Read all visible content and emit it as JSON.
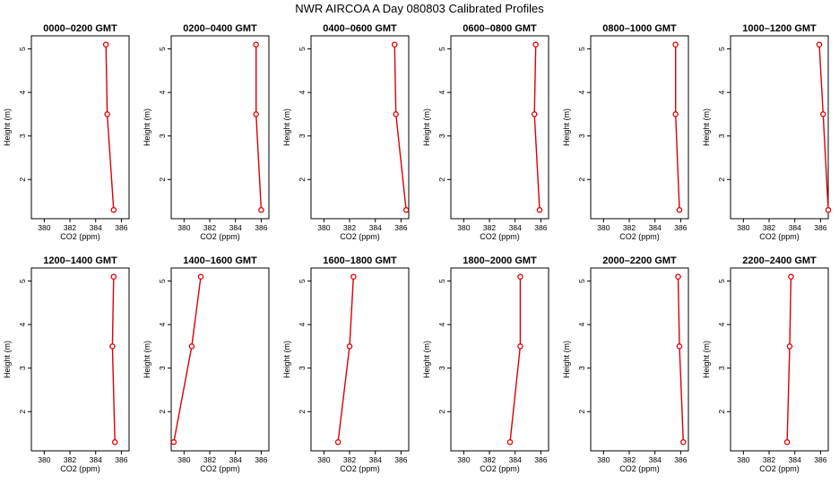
{
  "figure": {
    "title": "NWR AIRCOA A  Day 080803  Calibrated Profiles",
    "line_color": "#dd0000",
    "point_color": "#dd0000"
  },
  "chart_data": [
    {
      "type": "line",
      "title": "0000–0200 GMT",
      "xlabel": "CO2 (ppm)",
      "ylabel": "Height (m)",
      "xlim": [
        379,
        386.6
      ],
      "ylim": [
        1.1,
        5.3
      ],
      "xticks": [
        380,
        382,
        384,
        386
      ],
      "yticks": [
        2,
        3,
        4,
        5
      ],
      "series": [
        {
          "x": [
            385.4,
            384.9,
            384.8
          ],
          "y": [
            1.3,
            3.5,
            5.1
          ]
        }
      ]
    },
    {
      "type": "line",
      "title": "0200–0400 GMT",
      "xlabel": "CO2 (ppm)",
      "ylabel": "Height (m)",
      "xlim": [
        379,
        386.6
      ],
      "ylim": [
        1.1,
        5.3
      ],
      "xticks": [
        380,
        382,
        384,
        386
      ],
      "yticks": [
        2,
        3,
        4,
        5
      ],
      "series": [
        {
          "x": [
            386.0,
            385.6,
            385.6
          ],
          "y": [
            1.3,
            3.5,
            5.1
          ]
        }
      ]
    },
    {
      "type": "line",
      "title": "0400–0600 GMT",
      "xlabel": "CO2 (ppm)",
      "ylabel": "Height (m)",
      "xlim": [
        379,
        386.6
      ],
      "ylim": [
        1.1,
        5.3
      ],
      "xticks": [
        380,
        382,
        384,
        386
      ],
      "yticks": [
        2,
        3,
        4,
        5
      ],
      "series": [
        {
          "x": [
            386.4,
            385.6,
            385.5
          ],
          "y": [
            1.3,
            3.5,
            5.1
          ]
        }
      ]
    },
    {
      "type": "line",
      "title": "0600–0800 GMT",
      "xlabel": "CO2 (ppm)",
      "ylabel": "Height (m)",
      "xlim": [
        379,
        386.6
      ],
      "ylim": [
        1.1,
        5.3
      ],
      "xticks": [
        380,
        382,
        384,
        386
      ],
      "yticks": [
        2,
        3,
        4,
        5
      ],
      "series": [
        {
          "x": [
            385.9,
            385.5,
            385.6
          ],
          "y": [
            1.3,
            3.5,
            5.1
          ]
        }
      ]
    },
    {
      "type": "line",
      "title": "0800–1000 GMT",
      "xlabel": "CO2 (ppm)",
      "ylabel": "Height (m)",
      "xlim": [
        379,
        386.6
      ],
      "ylim": [
        1.1,
        5.3
      ],
      "xticks": [
        380,
        382,
        384,
        386
      ],
      "yticks": [
        2,
        3,
        4,
        5
      ],
      "series": [
        {
          "x": [
            385.9,
            385.6,
            385.6
          ],
          "y": [
            1.3,
            3.5,
            5.1
          ]
        }
      ]
    },
    {
      "type": "line",
      "title": "1000–1200 GMT",
      "xlabel": "CO2 (ppm)",
      "ylabel": "Height (m)",
      "xlim": [
        379,
        386.6
      ],
      "ylim": [
        1.1,
        5.3
      ],
      "xticks": [
        380,
        382,
        384,
        386
      ],
      "yticks": [
        2,
        3,
        4,
        5
      ],
      "series": [
        {
          "x": [
            386.6,
            386.2,
            385.9
          ],
          "y": [
            1.3,
            3.5,
            5.1
          ]
        }
      ]
    },
    {
      "type": "line",
      "title": "1200–1400 GMT",
      "xlabel": "CO2 (ppm)",
      "ylabel": "Height (m)",
      "xlim": [
        379,
        386.6
      ],
      "ylim": [
        1.1,
        5.3
      ],
      "xticks": [
        380,
        382,
        384,
        386
      ],
      "yticks": [
        2,
        3,
        4,
        5
      ],
      "series": [
        {
          "x": [
            385.5,
            385.3,
            385.4
          ],
          "y": [
            1.3,
            3.5,
            5.1
          ]
        }
      ]
    },
    {
      "type": "line",
      "title": "1400–1600 GMT",
      "xlabel": "CO2 (ppm)",
      "ylabel": "Height (m)",
      "xlim": [
        379,
        386.6
      ],
      "ylim": [
        1.1,
        5.3
      ],
      "xticks": [
        380,
        382,
        384,
        386
      ],
      "yticks": [
        2,
        3,
        4,
        5
      ],
      "series": [
        {
          "x": [
            379.2,
            380.6,
            381.3
          ],
          "y": [
            1.3,
            3.5,
            5.1
          ]
        }
      ]
    },
    {
      "type": "line",
      "title": "1600–1800 GMT",
      "xlabel": "CO2 (ppm)",
      "ylabel": "Height (m)",
      "xlim": [
        379,
        386.6
      ],
      "ylim": [
        1.1,
        5.3
      ],
      "xticks": [
        380,
        382,
        384,
        386
      ],
      "yticks": [
        2,
        3,
        4,
        5
      ],
      "series": [
        {
          "x": [
            381.1,
            382.0,
            382.3
          ],
          "y": [
            1.3,
            3.5,
            5.1
          ]
        }
      ]
    },
    {
      "type": "line",
      "title": "1800–2000 GMT",
      "xlabel": "CO2 (ppm)",
      "ylabel": "Height (m)",
      "xlim": [
        379,
        386.6
      ],
      "ylim": [
        1.1,
        5.3
      ],
      "xticks": [
        380,
        382,
        384,
        386
      ],
      "yticks": [
        2,
        3,
        4,
        5
      ],
      "series": [
        {
          "x": [
            383.6,
            384.4,
            384.4
          ],
          "y": [
            1.3,
            3.5,
            5.1
          ]
        }
      ]
    },
    {
      "type": "line",
      "title": "2000–2200 GMT",
      "xlabel": "CO2 (ppm)",
      "ylabel": "Height (m)",
      "xlim": [
        379,
        386.6
      ],
      "ylim": [
        1.1,
        5.3
      ],
      "xticks": [
        380,
        382,
        384,
        386
      ],
      "yticks": [
        2,
        3,
        4,
        5
      ],
      "series": [
        {
          "x": [
            386.2,
            385.9,
            385.8
          ],
          "y": [
            1.3,
            3.5,
            5.1
          ]
        }
      ]
    },
    {
      "type": "line",
      "title": "2200–2400 GMT",
      "xlabel": "CO2 (ppm)",
      "ylabel": "Height (m)",
      "xlim": [
        379,
        386.6
      ],
      "ylim": [
        1.1,
        5.3
      ],
      "xticks": [
        380,
        382,
        384,
        386
      ],
      "yticks": [
        2,
        3,
        4,
        5
      ],
      "series": [
        {
          "x": [
            383.4,
            383.6,
            383.7
          ],
          "y": [
            1.3,
            3.5,
            5.1
          ]
        }
      ]
    }
  ]
}
